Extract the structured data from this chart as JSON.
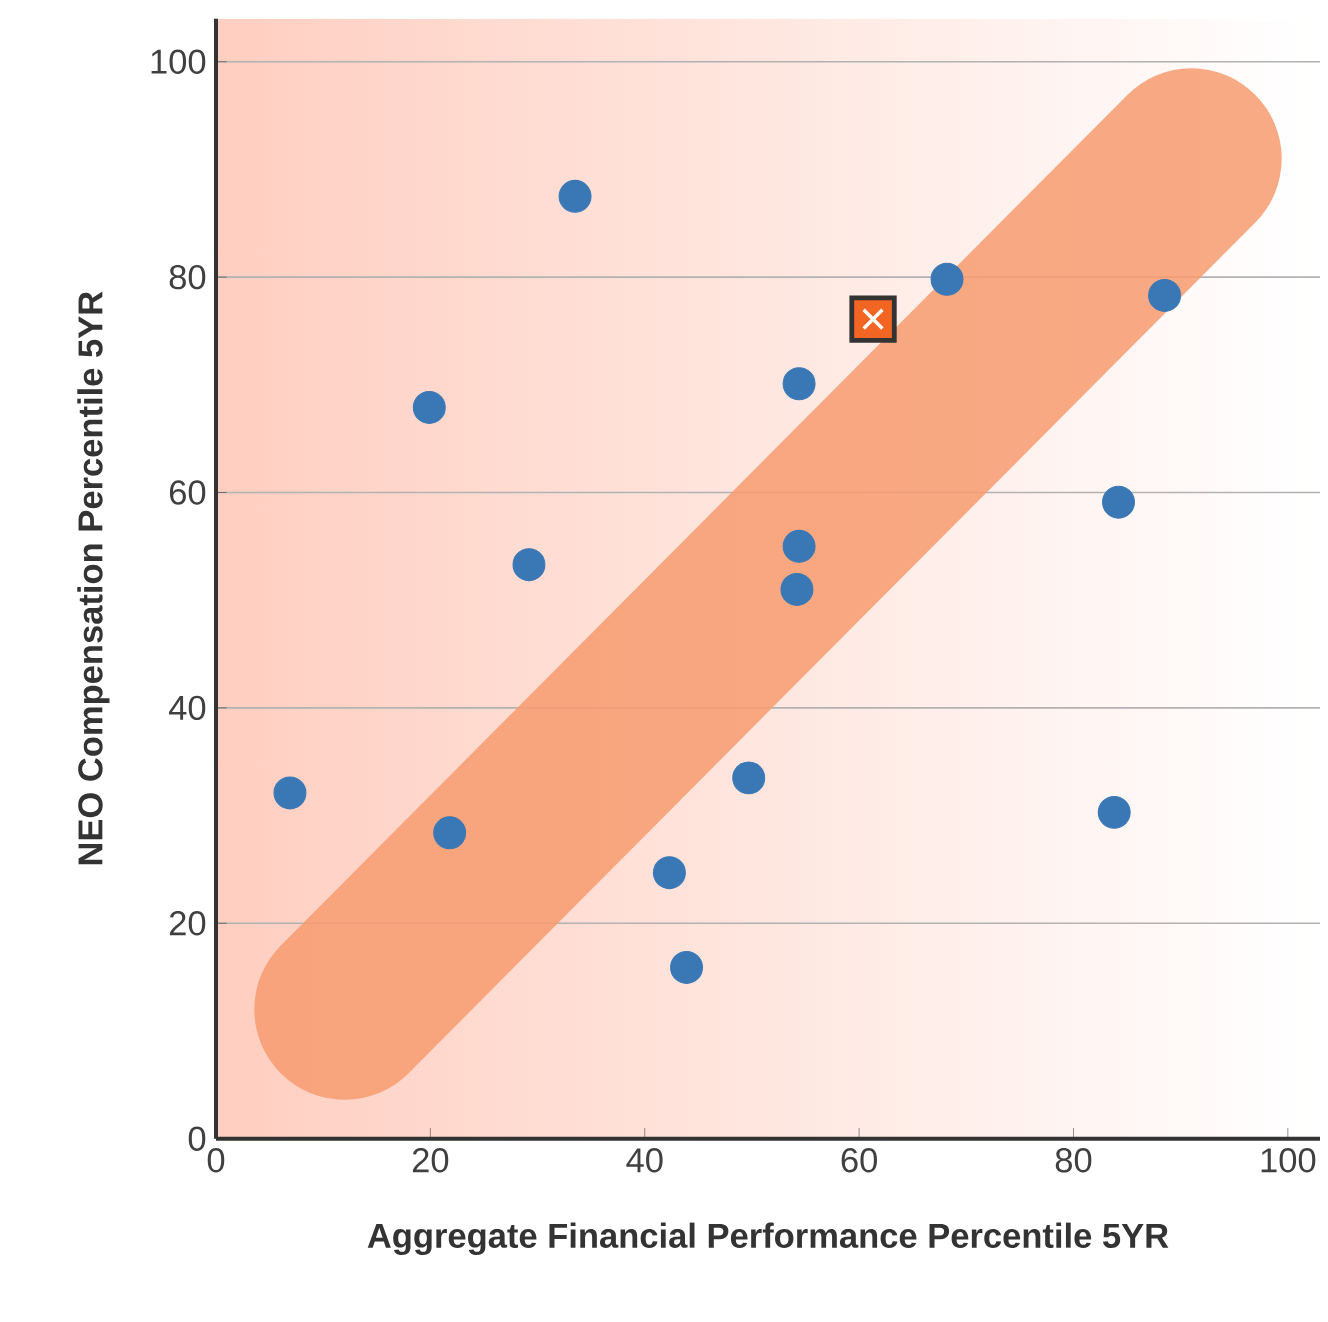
{
  "chart_data": {
    "type": "scatter",
    "xlabel": "Aggregate Financial Performance Percentile 5YR",
    "ylabel": "NEO Compensation Percentile  5YR",
    "xlim": [
      0,
      103
    ],
    "ylim": [
      0,
      104
    ],
    "xticks": [
      0,
      20,
      40,
      60,
      80,
      100
    ],
    "yticks": [
      0,
      20,
      40,
      60,
      80,
      100
    ],
    "grid": "y",
    "series": [
      {
        "type": "line",
        "color": "#f79b6e",
        "x": [
          12,
          91
        ],
        "values": [
          12,
          91
        ]
      },
      {
        "marker": "circle",
        "color": "#3a78b5",
        "x": [
          6.9,
          19.9,
          21.8,
          29.2,
          33.5,
          42.3,
          43.9,
          49.7,
          54.4,
          54.4,
          54.2,
          68.2,
          84.2,
          83.8,
          88.5
        ],
        "values": [
          32.1,
          67.9,
          28.4,
          53.3,
          87.5,
          24.7,
          15.9,
          33.5,
          70.1,
          55,
          51,
          79.8,
          59.1,
          30.3,
          78.3
        ]
      },
      {
        "marker": "square",
        "color": "#f26522",
        "x": [
          61.3
        ],
        "values": [
          76.1
        ]
      }
    ]
  }
}
